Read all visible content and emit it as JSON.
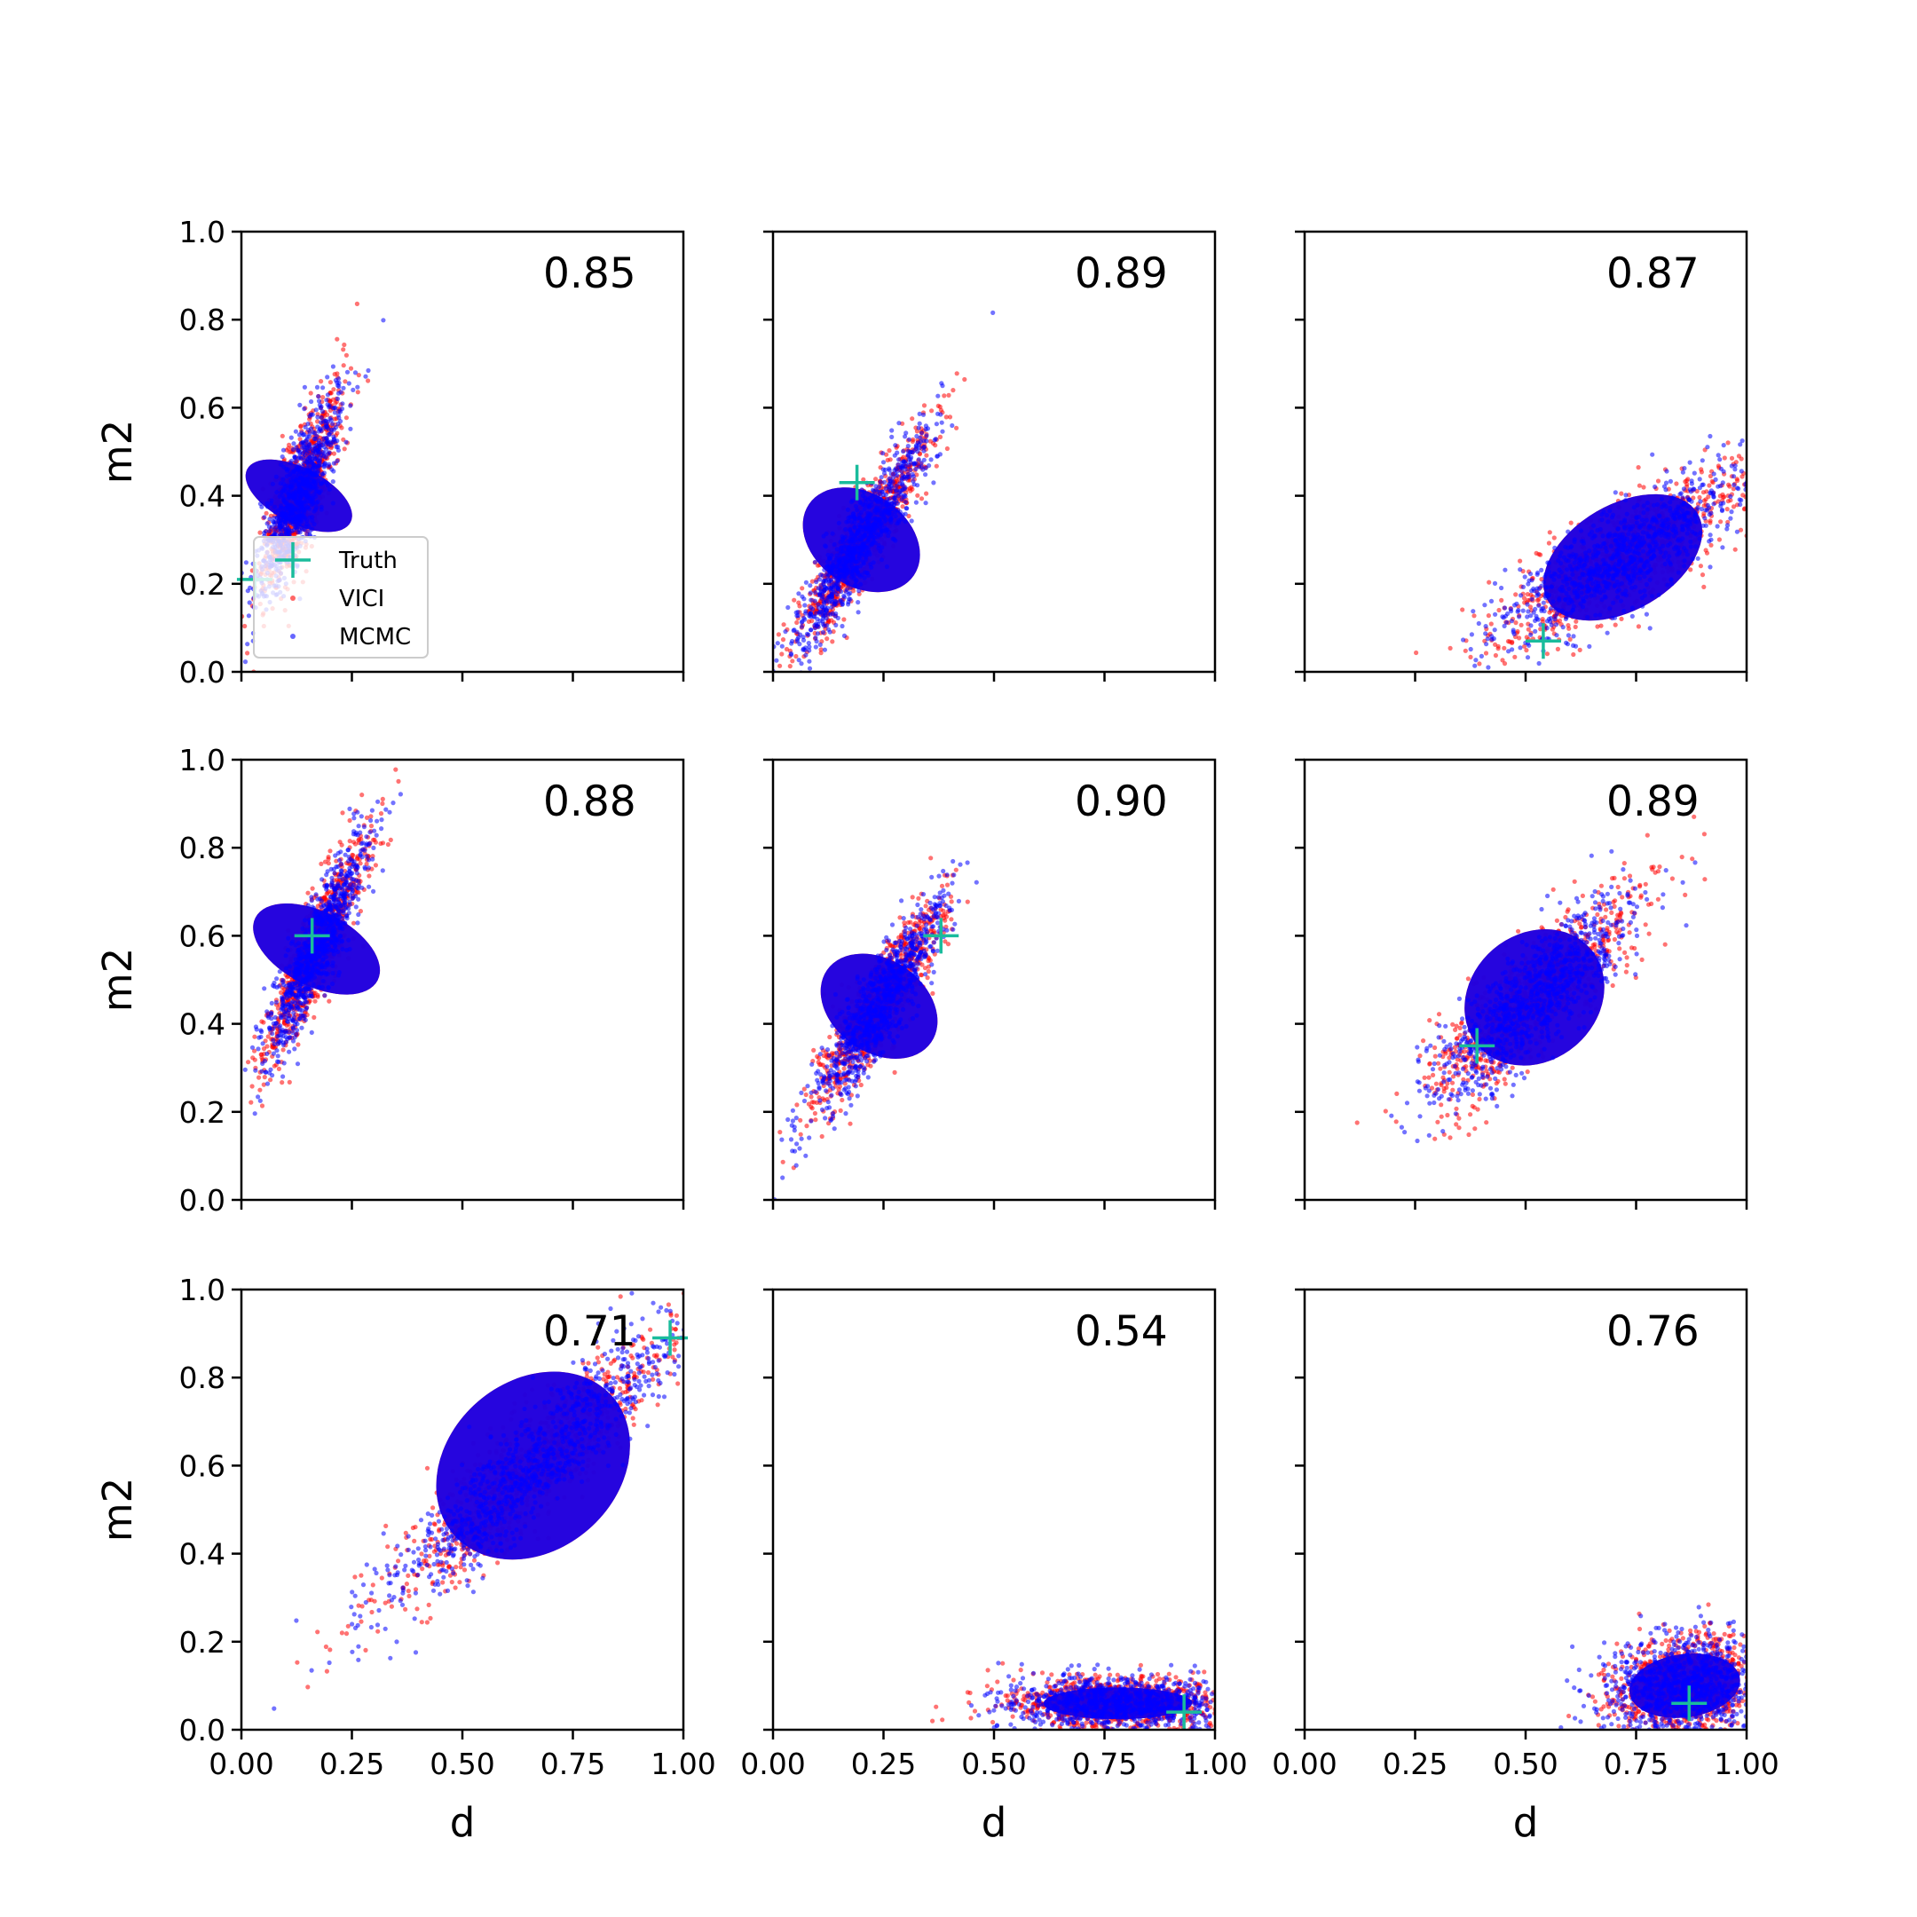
{
  "chart_data": {
    "type": "scatter",
    "xlabel": "d",
    "ylabel": "m2",
    "xlim": [
      0,
      1
    ],
    "ylim": [
      0,
      1
    ],
    "x_ticks": [
      "0.00",
      "0.25",
      "0.50",
      "0.75",
      "1.00"
    ],
    "y_ticks": [
      "0.0",
      "0.2",
      "0.4",
      "0.6",
      "0.8",
      "1.0"
    ],
    "legend": {
      "placement": "lower-left of first panel",
      "entries": [
        {
          "label": "Truth",
          "marker": "plus",
          "color": "#1abc9c"
        },
        {
          "label": "VICI",
          "marker": "dot",
          "color": "#ff0000"
        },
        {
          "label": "MCMC",
          "marker": "dot",
          "color": "#0000ff"
        }
      ]
    },
    "colors": {
      "truth": "#1abc9c",
      "vici": "#ff0000",
      "mcmc": "#0000ff"
    },
    "panels": [
      {
        "overlap": "0.85",
        "truth": [
          0.03,
          0.21
        ],
        "cloud": {
          "cx": 0.13,
          "cy": 0.4,
          "sx": 0.045,
          "sy": 0.11,
          "rho": 0.8
        }
      },
      {
        "overlap": "0.89",
        "truth": [
          0.19,
          0.43
        ],
        "cloud": {
          "cx": 0.2,
          "cy": 0.3,
          "sx": 0.075,
          "sy": 0.12,
          "rho": 0.92
        }
      },
      {
        "overlap": "0.87",
        "truth": [
          0.54,
          0.07
        ],
        "cloud": {
          "cx": 0.72,
          "cy": 0.26,
          "sx": 0.14,
          "sy": 0.1,
          "rho": 0.82
        }
      },
      {
        "overlap": "0.88",
        "truth": [
          0.16,
          0.6
        ],
        "cloud": {
          "cx": 0.17,
          "cy": 0.57,
          "sx": 0.06,
          "sy": 0.13,
          "rho": 0.9
        }
      },
      {
        "overlap": "0.90",
        "truth": [
          0.38,
          0.6
        ],
        "cloud": {
          "cx": 0.24,
          "cy": 0.44,
          "sx": 0.075,
          "sy": 0.12,
          "rho": 0.9
        }
      },
      {
        "overlap": "0.89",
        "truth": [
          0.39,
          0.35
        ],
        "cloud": {
          "cx": 0.52,
          "cy": 0.46,
          "sx": 0.12,
          "sy": 0.12,
          "rho": 0.85
        }
      },
      {
        "overlap": "0.71",
        "truth": [
          0.97,
          0.89
        ],
        "cloud": {
          "cx": 0.66,
          "cy": 0.6,
          "sx": 0.17,
          "sy": 0.16,
          "rho": 0.92
        }
      },
      {
        "overlap": "0.54",
        "truth": [
          0.93,
          0.04
        ],
        "cloud": {
          "cx": 0.78,
          "cy": 0.06,
          "sx": 0.12,
          "sy": 0.03,
          "rho": 0.0
        }
      },
      {
        "overlap": "0.76",
        "truth": [
          0.87,
          0.06
        ],
        "cloud": {
          "cx": 0.86,
          "cy": 0.1,
          "sx": 0.09,
          "sy": 0.06,
          "rho": 0.2
        }
      }
    ]
  }
}
